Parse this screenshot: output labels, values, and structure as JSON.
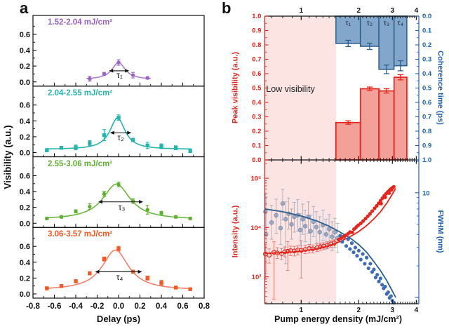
{
  "colors": {
    "red": "#e5241b",
    "salmon": "#f3a099",
    "blue_dark": "#2d5e8d",
    "blue_fill": "#82a7cb",
    "blue_text": "#1c61b0",
    "blue_spine": "#4a77a8",
    "gray_blue": "#93a3bf",
    "gray_blue_err": "#9aa9c4",
    "scatter_blue": "#3e6cb5",
    "pink": "#fbe4e1",
    "black": "#1a1a1a"
  },
  "chart_data": [
    {
      "id": "visibility-vs-delay",
      "type": "line",
      "panel_label": "a",
      "xlabel": "Delay (ps)",
      "ylabel": "Visibility (a.u.)",
      "xlim": [
        -0.8,
        0.8
      ],
      "ylim": [
        -0.05,
        0.84
      ],
      "x_ticks": [
        -0.8,
        -0.6,
        -0.4,
        -0.2,
        0,
        0.2,
        0.4,
        0.6,
        0.8
      ],
      "x_tick_labels": [
        "-0.8",
        "-0.6",
        "-0.4",
        "-0.2",
        "0.0",
        "0.2",
        "0.4",
        "0.6",
        "0.8"
      ],
      "y_ticks": [
        0,
        0.2,
        0.4,
        0.6
      ],
      "y_tick_labels": [
        "0.0",
        "0.2",
        "0.4",
        "0.6"
      ],
      "series": [
        {
          "label": "1.52-2.04 mJ/cm²",
          "color": "#9a63c4",
          "curve_color": "#a97fd0",
          "marker": "circle",
          "x": [
            -0.27,
            -0.135,
            0,
            0.135,
            0.27
          ],
          "y": [
            0.04,
            0.1,
            0.245,
            0.085,
            0.05
          ],
          "yerr": [
            0.03,
            0.02,
            0.035,
            0.035,
            0.015
          ],
          "fit": {
            "y0": 0.03,
            "A": 0.215,
            "x0": 0,
            "w": 0.075,
            "range": [
              -0.3,
              0.3
            ]
          },
          "tau": {
            "label": "τ₁",
            "x1": -0.09,
            "x2": 0.1,
            "y": 0.14,
            "lx": 0.01,
            "ly": 0.05
          }
        },
        {
          "label": "2.04-2.55 mJ/cm²",
          "color": "#27b3ab",
          "curve_color": "#27b3ab",
          "marker": "square",
          "x": [
            -0.67,
            -0.535,
            -0.4,
            -0.27,
            -0.135,
            0,
            0.135,
            0.27,
            0.4,
            0.535,
            0.67
          ],
          "y": [
            0.03,
            0.06,
            0.065,
            0.12,
            0.22,
            0.44,
            0.16,
            0.09,
            0.08,
            0.06,
            0.02
          ],
          "yerr": [
            0.02,
            0.015,
            0.03,
            0.03,
            0.07,
            0.035,
            0.02,
            0.04,
            0.03,
            0.025,
            0.02
          ],
          "fit": {
            "y0": 0.04,
            "A": 0.4,
            "x0": -0.01,
            "w": 0.085,
            "range": [
              -0.68,
              0.68
            ]
          },
          "tau": {
            "label": "τ₂",
            "x1": -0.08,
            "x2": 0.12,
            "y": 0.25,
            "lx": 0.02,
            "ly": 0.155
          }
        },
        {
          "label": "2.55-3.06 mJ/cm²",
          "color": "#61ae33",
          "curve_color": "#6cb73f",
          "marker": "circle",
          "x": [
            -0.67,
            -0.535,
            -0.4,
            -0.27,
            -0.135,
            0,
            0.135,
            0.27,
            0.4,
            0.535,
            0.67
          ],
          "y": [
            0.06,
            0.08,
            0.15,
            0.21,
            0.37,
            0.49,
            0.28,
            0.17,
            0.13,
            0.08,
            0.06
          ],
          "yerr": [
            0.015,
            0.015,
            0.02,
            0.035,
            0.035,
            0.03,
            0.03,
            0.055,
            0.02,
            0.015,
            0.015
          ],
          "fit": {
            "y0": 0.045,
            "A": 0.45,
            "x0": -0.02,
            "w": 0.155,
            "range": [
              -0.68,
              0.68
            ]
          },
          "tau": {
            "label": "τ₃",
            "x1": -0.19,
            "x2": 0.23,
            "y": 0.27,
            "lx": 0.03,
            "ly": 0.165
          }
        },
        {
          "label": "3.06-3.57 mJ/cm²",
          "color": "#ef5a26",
          "curve_color": "#f4806c",
          "marker": "square",
          "x": [
            -0.67,
            -0.535,
            -0.4,
            -0.27,
            -0.135,
            0,
            0.135,
            0.27,
            0.4,
            0.535,
            0.67
          ],
          "y": [
            0.07,
            0.1,
            0.16,
            0.26,
            0.44,
            0.57,
            0.28,
            0.2,
            0.14,
            0.08,
            0.06
          ],
          "yerr": [
            0.02,
            0.015,
            0.02,
            0.02,
            0.025,
            0.03,
            0.02,
            0.025,
            0.03,
            0.015,
            0.015
          ],
          "fit": {
            "y0": 0.045,
            "A": 0.51,
            "x0": -0.03,
            "w": 0.15,
            "range": [
              -0.68,
              0.68
            ]
          },
          "tau": {
            "label": "τ₄",
            "x1": -0.22,
            "x2": 0.22,
            "y": 0.28,
            "lx": 0.01,
            "ly": 0.175
          }
        }
      ]
    },
    {
      "id": "peak-visibility-and-coherence",
      "type": "bar",
      "panel_label": "b",
      "x_scale": "log",
      "xlim": [
        0.645,
        4.14
      ],
      "x_ticks": [
        1,
        2,
        3,
        4
      ],
      "x_tick_labels": [
        "1",
        "2",
        "3",
        "4"
      ],
      "ylabel_left": "Peak visibility (a.u.)",
      "ylabel_right": "Coherence time (ps)",
      "ylim_left": [
        0,
        1
      ],
      "left_tick_labels": [
        "0.0",
        "0.1",
        "0.2",
        "0.3",
        "0.4",
        "0.5",
        "0.6",
        "0.7",
        "0.8",
        "0.9",
        "1.0"
      ],
      "ylim_right": [
        0,
        1
      ],
      "right_axis_reversed": true,
      "right_tick_labels": [
        "0.0",
        "0.1",
        "0.2",
        "0.3",
        "0.4",
        "0.5",
        "0.6",
        "0.7",
        "0.8",
        "0.9",
        "1.0"
      ],
      "region": {
        "label": "Low visibility",
        "x1": 0.645,
        "x2": 1.52
      },
      "bars": [
        {
          "range": [
            1.52,
            2.04
          ],
          "peak_visibility": 0.26,
          "vis_err": 0.012,
          "coherence_time": 0.19,
          "coh_err": 0.022,
          "tau_label": "τ₁"
        },
        {
          "range": [
            2.04,
            2.55
          ],
          "peak_visibility": 0.495,
          "vis_err": 0.012,
          "coherence_time": 0.21,
          "coh_err": 0.022,
          "tau_label": "τ₂"
        },
        {
          "range": [
            2.55,
            3.06
          ],
          "peak_visibility": 0.48,
          "vis_err": 0.015,
          "coherence_time": 0.37,
          "coh_err": 0.03,
          "tau_label": "τ₃"
        },
        {
          "range": [
            3.06,
            3.57
          ],
          "peak_visibility": 0.575,
          "vis_err": 0.018,
          "coherence_time": 0.345,
          "coh_err": 0.035,
          "tau_label": "τ₄"
        }
      ]
    },
    {
      "id": "intensity-and-fwhm",
      "type": "scatter",
      "xlabel": "Pump energy density (mJ/cm²)",
      "x_scale": "log",
      "xlim": [
        0.645,
        4.14
      ],
      "x_ticks": [
        1,
        2,
        3,
        4
      ],
      "x_tick_labels": [
        "1",
        "2",
        "3",
        "4"
      ],
      "ylabel_left": "Intensity (a.u.)",
      "y_scale_left": "log",
      "ylim_left": [
        285,
        235000
      ],
      "left_ticks": [
        {
          "v": 1000,
          "label": "10³"
        },
        {
          "v": 10000,
          "label": "10⁴"
        },
        {
          "v": 100000,
          "label": "10⁵"
        }
      ],
      "ylabel_right": "FWHM (nm)",
      "y_scale_right": "log",
      "ylim_right": [
        0.87,
        20.6
      ],
      "right_ticks": [
        {
          "v": 10,
          "label": "10"
        }
      ],
      "region": {
        "x1": 0.645,
        "x2": 1.52
      },
      "intensity_low": [
        [
          0.65,
          2900,
          900,
          4600
        ],
        [
          0.68,
          2750,
          1900,
          3700
        ],
        [
          0.72,
          3150,
          350,
          5200
        ],
        [
          0.75,
          3050,
          2350,
          3900
        ],
        [
          0.79,
          2950,
          2250,
          3750
        ],
        [
          0.82,
          3250,
          2550,
          4050
        ],
        [
          0.85,
          3300,
          1350,
          5200
        ],
        [
          0.88,
          3400,
          2700,
          4200
        ],
        [
          0.92,
          3350,
          2650,
          4150
        ],
        [
          0.96,
          3500,
          2800,
          4300
        ],
        [
          1.0,
          3450,
          950,
          5400
        ],
        [
          1.05,
          3600,
          2950,
          4400
        ],
        [
          1.1,
          3750,
          3050,
          4550
        ],
        [
          1.15,
          3700,
          3050,
          4450
        ],
        [
          1.21,
          3900,
          3250,
          4650
        ],
        [
          1.26,
          4100,
          3450,
          4850
        ],
        [
          1.31,
          4200,
          3550,
          4950
        ],
        [
          1.37,
          4400,
          3750,
          5150
        ],
        [
          1.43,
          4650,
          3950,
          5400
        ],
        [
          1.49,
          4900,
          4250,
          5650
        ]
      ],
      "intensity_high": [
        [
          1.57,
          5700
        ],
        [
          1.62,
          6100
        ],
        [
          1.66,
          6500
        ],
        [
          1.71,
          7000
        ],
        [
          1.76,
          7500
        ],
        [
          1.8,
          8100
        ],
        [
          1.85,
          8000
        ],
        [
          1.89,
          9300
        ],
        [
          1.94,
          10200
        ],
        [
          1.99,
          11200
        ],
        [
          2.05,
          12200
        ],
        [
          2.11,
          13600
        ],
        [
          2.17,
          15200
        ],
        [
          2.23,
          17000
        ],
        [
          2.29,
          19000
        ],
        [
          2.35,
          21500
        ],
        [
          2.42,
          24500
        ],
        [
          2.48,
          27500
        ],
        [
          2.54,
          31000
        ],
        [
          2.6,
          35000
        ],
        [
          2.66,
          39500
        ],
        [
          2.72,
          44000
        ],
        [
          2.78,
          48500
        ],
        [
          2.84,
          53000
        ],
        [
          2.9,
          57500
        ],
        [
          2.95,
          61000
        ],
        [
          3.0,
          64000
        ],
        [
          3.05,
          67000
        ],
        [
          2.62,
          30500
        ],
        [
          2.75,
          41000
        ],
        [
          2.88,
          50000
        ],
        [
          2.97,
          58000
        ]
      ],
      "fwhm_low": [
        [
          0.65,
          6.6,
          4.6,
          9.6
        ],
        [
          0.655,
          4.0,
          1.7,
          9.2
        ],
        [
          0.7,
          5.2,
          3.6,
          7.6
        ],
        [
          0.74,
          6.1,
          4.1,
          8.7
        ],
        [
          0.78,
          4.6,
          3.2,
          6.6
        ],
        [
          0.8,
          7.9,
          5.5,
          10.8
        ],
        [
          0.83,
          5.6,
          2.1,
          8.2
        ],
        [
          0.86,
          6.3,
          4.5,
          8.9
        ],
        [
          0.89,
          5.0,
          3.6,
          7.0
        ],
        [
          0.92,
          5.9,
          4.2,
          8.1
        ],
        [
          0.96,
          6.1,
          4.3,
          8.6
        ],
        [
          0.99,
          4.4,
          3.1,
          6.3
        ],
        [
          1.02,
          5.6,
          4.0,
          7.8
        ],
        [
          1.05,
          4.8,
          3.4,
          6.8
        ],
        [
          1.09,
          5.9,
          4.1,
          8.2
        ],
        [
          1.12,
          4.3,
          3.0,
          6.1
        ],
        [
          1.16,
          5.3,
          3.8,
          7.4
        ],
        [
          1.2,
          4.7,
          3.3,
          6.6
        ],
        [
          1.25,
          4.2,
          3.0,
          5.9
        ],
        [
          1.3,
          4.9,
          3.5,
          6.8
        ],
        [
          1.35,
          4.0,
          2.9,
          5.6
        ],
        [
          1.4,
          4.5,
          3.2,
          6.2
        ],
        [
          1.45,
          3.8,
          2.8,
          5.3
        ],
        [
          1.5,
          4.2,
          3.0,
          5.7
        ],
        [
          1.55,
          3.7,
          2.7,
          5.1
        ]
      ],
      "fwhm_high": [
        [
          1.6,
          3.9
        ],
        [
          1.64,
          3.4
        ],
        [
          1.68,
          3.8
        ],
        [
          1.72,
          3.1
        ],
        [
          1.76,
          3.6
        ],
        [
          1.8,
          2.9
        ],
        [
          1.84,
          3.3
        ],
        [
          1.88,
          2.7
        ],
        [
          1.92,
          3.0
        ],
        [
          1.96,
          2.5
        ],
        [
          2.0,
          2.8
        ],
        [
          2.05,
          2.3
        ],
        [
          2.1,
          2.6
        ],
        [
          2.15,
          2.1
        ],
        [
          2.2,
          2.4
        ],
        [
          2.25,
          1.9
        ],
        [
          2.3,
          2.1
        ],
        [
          2.35,
          1.75
        ],
        [
          2.4,
          1.85
        ],
        [
          2.45,
          1.55
        ],
        [
          2.5,
          1.65
        ],
        [
          2.55,
          1.42
        ],
        [
          2.6,
          1.52
        ],
        [
          2.65,
          1.32
        ],
        [
          2.7,
          1.22
        ],
        [
          2.75,
          1.27
        ],
        [
          2.8,
          1.08
        ],
        [
          2.85,
          1.12
        ],
        [
          2.9,
          0.99
        ],
        [
          2.95,
          1.03
        ],
        [
          3.0,
          0.93
        ],
        [
          3.05,
          0.89
        ]
      ],
      "intensity_fit": [
        [
          0.645,
          3000
        ],
        [
          0.8,
          3100
        ],
        [
          1.0,
          3300
        ],
        [
          1.2,
          3700
        ],
        [
          1.4,
          4300
        ],
        [
          1.6,
          5200
        ],
        [
          1.8,
          6500
        ],
        [
          2.0,
          8300
        ],
        [
          2.2,
          11000
        ],
        [
          2.4,
          15000
        ],
        [
          2.6,
          21000
        ],
        [
          2.8,
          31000
        ],
        [
          3.0,
          48000
        ],
        [
          3.12,
          62000
        ]
      ],
      "fwhm_fit": [
        [
          0.645,
          7.0
        ],
        [
          0.8,
          6.6
        ],
        [
          1.0,
          6.0
        ],
        [
          1.2,
          5.4
        ],
        [
          1.4,
          4.8
        ],
        [
          1.6,
          4.2
        ],
        [
          1.8,
          3.7
        ],
        [
          2.0,
          3.2
        ],
        [
          2.2,
          2.7
        ],
        [
          2.4,
          2.2
        ],
        [
          2.6,
          1.8
        ],
        [
          2.8,
          1.45
        ],
        [
          3.0,
          1.15
        ],
        [
          3.12,
          1.0
        ]
      ]
    }
  ]
}
